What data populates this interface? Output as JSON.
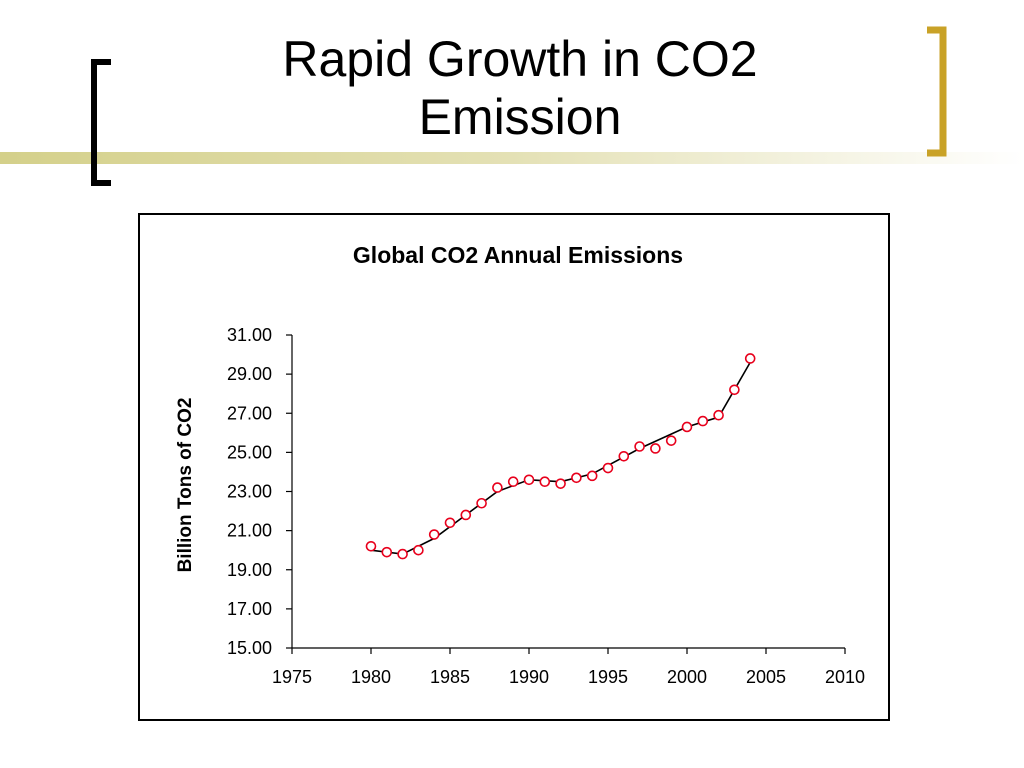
{
  "slide": {
    "title_line1": "Rapid Growth in CO2",
    "title_line2": "Emission"
  },
  "colors": {
    "accent": "#c9a227",
    "bar_gradient": "#d4d08a",
    "marker": "#e8001c",
    "line": "#000000"
  },
  "chart_data": {
    "type": "line",
    "title": "Global CO2 Annual Emissions",
    "xlabel": "",
    "ylabel": "Billion Tons of CO2",
    "xlim": [
      1975,
      2010
    ],
    "ylim": [
      15,
      31
    ],
    "x_ticks": [
      "1975",
      "1980",
      "1985",
      "1990",
      "1995",
      "2000",
      "2005",
      "2010"
    ],
    "y_ticks": [
      "15.00",
      "17.00",
      "19.00",
      "21.00",
      "23.00",
      "25.00",
      "27.00",
      "29.00",
      "31.00"
    ],
    "grid": false,
    "legend": "none",
    "series": [
      {
        "x": [
          1980,
          1981,
          1982,
          1983,
          1984,
          1985,
          1986,
          1987,
          1988,
          1989,
          1990,
          1991,
          1992,
          1993,
          1994,
          1995,
          1996,
          1997,
          1998,
          1999,
          2000,
          2001,
          2002,
          2003,
          2004
        ],
        "y": [
          20.2,
          19.9,
          19.8,
          20.0,
          20.8,
          21.4,
          21.8,
          22.4,
          23.2,
          23.5,
          23.6,
          23.5,
          23.4,
          23.7,
          23.8,
          24.2,
          24.8,
          25.3,
          25.2,
          25.6,
          26.3,
          26.6,
          26.9,
          28.2,
          29.8
        ],
        "trendline": [
          [
            1980,
            20.0
          ],
          [
            1982,
            19.8
          ],
          [
            1984,
            20.6
          ],
          [
            1988,
            23.0
          ],
          [
            1990,
            23.6
          ],
          [
            1992,
            23.5
          ],
          [
            1994,
            23.9
          ],
          [
            1997,
            25.2
          ],
          [
            2000,
            26.3
          ],
          [
            2002,
            26.8
          ],
          [
            2004,
            29.6
          ]
        ]
      }
    ]
  }
}
